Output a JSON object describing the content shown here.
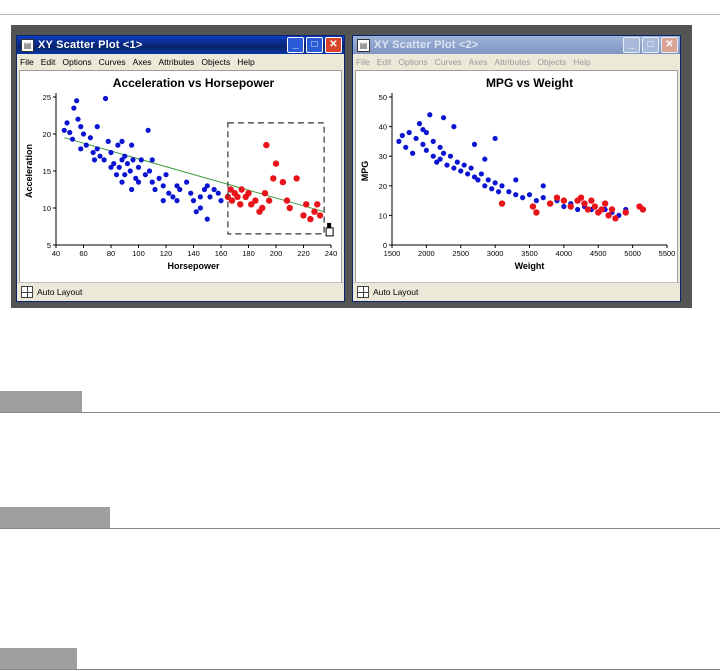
{
  "windows": [
    {
      "id": "win1",
      "title": "XY Scatter Plot <1>",
      "active": true,
      "menu": [
        "File",
        "Edit",
        "Options",
        "Curves",
        "Axes",
        "Attributes",
        "Objects",
        "Help"
      ],
      "status": "Auto Layout",
      "controls": {
        "minimize": "_",
        "maximize": "□",
        "close": "✕"
      }
    },
    {
      "id": "win2",
      "title": "XY Scatter Plot <2>",
      "active": false,
      "menu": [
        "File",
        "Edit",
        "Options",
        "Curves",
        "Axes",
        "Attributes",
        "Objects",
        "Help"
      ],
      "status": "Auto Layout",
      "controls": {
        "minimize": "_",
        "maximize": "□",
        "close": "✕"
      }
    }
  ],
  "colors": {
    "point_default": "#0a14d2",
    "point_selected": "#e8141a",
    "trend_line": "#3c9a3c",
    "selection_box": "#333333"
  },
  "chart_data": [
    {
      "type": "scatter",
      "title": "Acceleration vs Horsepower",
      "xlabel": "Horsepower",
      "ylabel": "Acceleration",
      "xlim": [
        40,
        240
      ],
      "ylim": [
        5,
        25
      ],
      "xticks": [
        40,
        60,
        80,
        100,
        120,
        140,
        160,
        180,
        200,
        220,
        240
      ],
      "yticks": [
        5,
        10,
        15,
        20,
        25
      ],
      "selection_region": {
        "x": [
          165,
          235
        ],
        "y": [
          6.5,
          21.5
        ]
      },
      "trend_line": [
        [
          46,
          19.5
        ],
        [
          235,
          9.5
        ]
      ],
      "series": [
        {
          "color_key": "point_default",
          "points": [
            [
              46,
              20.5
            ],
            [
              48,
              21.5
            ],
            [
              50,
              20.2
            ],
            [
              52,
              19.3
            ],
            [
              53,
              23.5
            ],
            [
              55,
              24.5
            ],
            [
              56,
              22.0
            ],
            [
              58,
              21.0
            ],
            [
              60,
              20.0
            ],
            [
              62,
              18.5
            ],
            [
              65,
              19.5
            ],
            [
              67,
              17.5
            ],
            [
              68,
              16.5
            ],
            [
              70,
              18.0
            ],
            [
              72,
              17.0
            ],
            [
              75,
              16.5
            ],
            [
              76,
              24.8
            ],
            [
              78,
              19.0
            ],
            [
              80,
              15.5
            ],
            [
              80,
              17.5
            ],
            [
              82,
              16.0
            ],
            [
              84,
              14.5
            ],
            [
              85,
              18.5
            ],
            [
              86,
              15.5
            ],
            [
              88,
              16.5
            ],
            [
              88,
              13.5
            ],
            [
              90,
              17.0
            ],
            [
              90,
              14.5
            ],
            [
              92,
              16.0
            ],
            [
              94,
              15.0
            ],
            [
              95,
              18.5
            ],
            [
              96,
              16.5
            ],
            [
              98,
              14.0
            ],
            [
              100,
              15.5
            ],
            [
              100,
              13.5
            ],
            [
              102,
              16.5
            ],
            [
              105,
              14.5
            ],
            [
              107,
              20.5
            ],
            [
              108,
              15.0
            ],
            [
              110,
              13.5
            ],
            [
              112,
              12.5
            ],
            [
              115,
              14.0
            ],
            [
              118,
              13.0
            ],
            [
              120,
              14.5
            ],
            [
              122,
              12.0
            ],
            [
              125,
              11.5
            ],
            [
              128,
              13.0
            ],
            [
              130,
              12.5
            ],
            [
              135,
              13.5
            ],
            [
              138,
              12.0
            ],
            [
              140,
              11.0
            ],
            [
              145,
              10.0
            ],
            [
              148,
              12.5
            ],
            [
              150,
              13.0
            ],
            [
              152,
              11.5
            ],
            [
              155,
              12.5
            ],
            [
              158,
              12.0
            ],
            [
              160,
              11.0
            ],
            [
              142,
              9.5
            ],
            [
              150,
              8.5
            ],
            [
              145,
              11.5
            ],
            [
              128,
              11.0
            ],
            [
              118,
              11.0
            ],
            [
              110,
              16.5
            ],
            [
              95,
              12.5
            ],
            [
              88,
              19.0
            ],
            [
              70,
              21.0
            ],
            [
              58,
              18.0
            ]
          ]
        },
        {
          "color_key": "point_selected",
          "points": [
            [
              165,
              11.5
            ],
            [
              167,
              12.5
            ],
            [
              168,
              11.0
            ],
            [
              170,
              12.0
            ],
            [
              172,
              11.5
            ],
            [
              174,
              10.5
            ],
            [
              175,
              12.5
            ],
            [
              178,
              11.5
            ],
            [
              180,
              12.0
            ],
            [
              182,
              10.5
            ],
            [
              185,
              11.0
            ],
            [
              188,
              9.5
            ],
            [
              190,
              10.0
            ],
            [
              192,
              12.0
            ],
            [
              193,
              18.5
            ],
            [
              195,
              11.0
            ],
            [
              198,
              14.0
            ],
            [
              200,
              16.0
            ],
            [
              205,
              13.5
            ],
            [
              208,
              11.0
            ],
            [
              210,
              10.0
            ],
            [
              215,
              14.0
            ],
            [
              220,
              9.0
            ],
            [
              222,
              10.5
            ],
            [
              225,
              8.5
            ],
            [
              228,
              9.5
            ],
            [
              230,
              10.5
            ],
            [
              232,
              9.0
            ]
          ]
        }
      ]
    },
    {
      "type": "scatter",
      "title": "MPG vs Weight",
      "xlabel": "Weight",
      "ylabel": "MPG",
      "xlim": [
        1500,
        5500
      ],
      "ylim": [
        0,
        50
      ],
      "xticks": [
        1500,
        2000,
        2500,
        3000,
        3500,
        4000,
        4500,
        5000,
        5500
      ],
      "yticks": [
        0,
        10,
        20,
        30,
        40,
        50
      ],
      "series": [
        {
          "color_key": "point_default",
          "points": [
            [
              1600,
              35
            ],
            [
              1650,
              37
            ],
            [
              1700,
              33
            ],
            [
              1750,
              38
            ],
            [
              1800,
              31
            ],
            [
              1850,
              36
            ],
            [
              1900,
              41
            ],
            [
              1950,
              34
            ],
            [
              2000,
              32
            ],
            [
              2000,
              38
            ],
            [
              2050,
              44
            ],
            [
              2100,
              30
            ],
            [
              2100,
              35
            ],
            [
              2150,
              28
            ],
            [
              2200,
              33
            ],
            [
              2200,
              29
            ],
            [
              2250,
              31
            ],
            [
              2300,
              27
            ],
            [
              2350,
              30
            ],
            [
              2400,
              26
            ],
            [
              2450,
              28
            ],
            [
              2500,
              25
            ],
            [
              2550,
              27
            ],
            [
              2600,
              24
            ],
            [
              2650,
              26
            ],
            [
              2700,
              23
            ],
            [
              2700,
              34
            ],
            [
              2750,
              22
            ],
            [
              2800,
              24
            ],
            [
              2850,
              20
            ],
            [
              2900,
              22
            ],
            [
              2950,
              19
            ],
            [
              3000,
              21
            ],
            [
              3050,
              18
            ],
            [
              3100,
              20
            ],
            [
              3200,
              18
            ],
            [
              3300,
              17
            ],
            [
              3400,
              16
            ],
            [
              3500,
              17
            ],
            [
              3600,
              15
            ],
            [
              3700,
              16
            ],
            [
              3800,
              14
            ],
            [
              3900,
              15
            ],
            [
              4000,
              13
            ],
            [
              4100,
              14
            ],
            [
              4200,
              12
            ],
            [
              4300,
              13
            ],
            [
              4400,
              12
            ],
            [
              4500,
              11
            ],
            [
              4600,
              12
            ],
            [
              4700,
              11
            ],
            [
              4800,
              10
            ],
            [
              4900,
              12
            ],
            [
              2850,
              29
            ],
            [
              3000,
              36
            ],
            [
              3300,
              22
            ],
            [
              3700,
              20
            ],
            [
              2400,
              40
            ],
            [
              2250,
              43
            ],
            [
              1950,
              39
            ]
          ]
        },
        {
          "color_key": "point_selected",
          "points": [
            [
              3100,
              14
            ],
            [
              3550,
              13
            ],
            [
              3600,
              11
            ],
            [
              3800,
              14
            ],
            [
              3900,
              16
            ],
            [
              4000,
              15
            ],
            [
              4100,
              13
            ],
            [
              4200,
              15
            ],
            [
              4250,
              16
            ],
            [
              4300,
              14
            ],
            [
              4350,
              12
            ],
            [
              4400,
              15
            ],
            [
              4450,
              13
            ],
            [
              4500,
              11
            ],
            [
              4550,
              12
            ],
            [
              4600,
              14
            ],
            [
              4650,
              10
            ],
            [
              4700,
              12
            ],
            [
              4750,
              9
            ],
            [
              4900,
              11
            ],
            [
              5100,
              13
            ],
            [
              5150,
              12
            ]
          ]
        }
      ]
    }
  ]
}
